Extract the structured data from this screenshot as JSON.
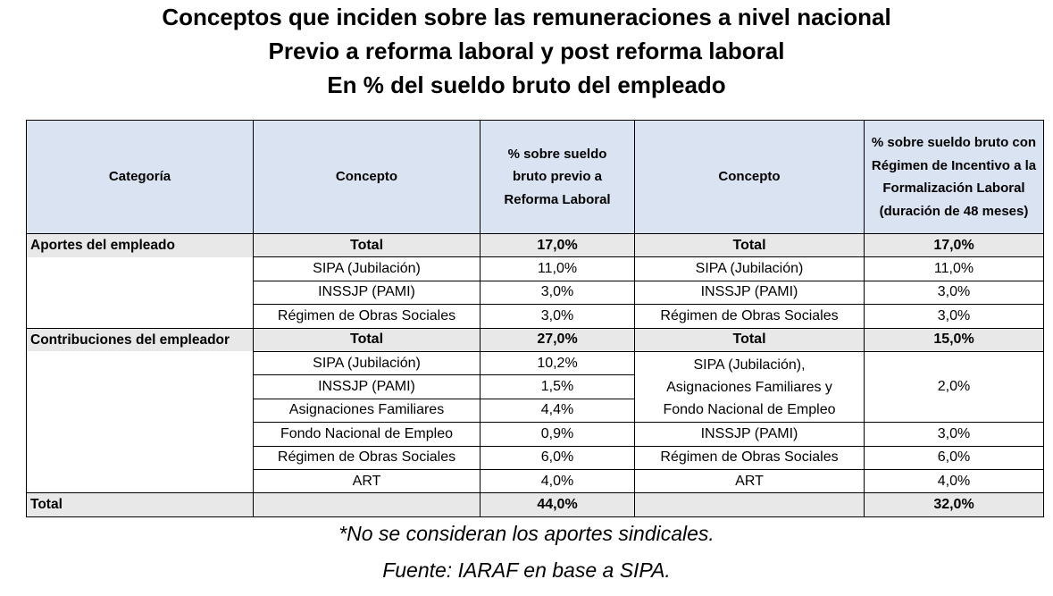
{
  "title": {
    "line1": "Conceptos que inciden sobre las remuneraciones a nivel nacional",
    "line2": "Previo a reforma laboral y post reforma laboral",
    "line3": "En % del sueldo bruto del empleado"
  },
  "table": {
    "headers": {
      "categoria": "Categoría",
      "concepto_prev": "Concepto",
      "pct_prev": "% sobre sueldo bruto previo a Reforma Laboral",
      "concepto_post": "Concepto",
      "pct_post": "% sobre sueldo bruto con Régimen de Incentivo a la Formalización Laboral (duración de 48 meses)"
    },
    "aportes": {
      "category": "Aportes del empleado",
      "total_label_prev": "Total",
      "total_prev": "17,0%",
      "total_label_post": "Total",
      "total_post": "17,0%",
      "rows": [
        {
          "concepto_prev": "SIPA (Jubilación)",
          "pct_prev": "11,0%",
          "concepto_post": "SIPA (Jubilación)",
          "pct_post": "11,0%"
        },
        {
          "concepto_prev": "INSSJP (PAMI)",
          "pct_prev": "3,0%",
          "concepto_post": "INSSJP (PAMI)",
          "pct_post": "3,0%"
        },
        {
          "concepto_prev": "Régimen de Obras Sociales",
          "pct_prev": "3,0%",
          "concepto_post": "Régimen de Obras Sociales",
          "pct_post": "3,0%"
        }
      ]
    },
    "contribuciones": {
      "category": "Contribuciones del empleador",
      "total_label_prev": "Total",
      "total_prev": "27,0%",
      "total_label_post": "Total",
      "total_post": "15,0%",
      "prev_rows": [
        {
          "concepto": "SIPA (Jubilación)",
          "pct": "10,2%"
        },
        {
          "concepto": "INSSJP (PAMI)",
          "pct": "1,5%"
        },
        {
          "concepto": "Asignaciones Familiares",
          "pct": "4,4%"
        },
        {
          "concepto": "Fondo Nacional de Empleo",
          "pct": "0,9%"
        },
        {
          "concepto": "Régimen de Obras Sociales",
          "pct": "6,0%"
        },
        {
          "concepto": "ART",
          "pct": "4,0%"
        }
      ],
      "post_merged": {
        "line1": "SIPA (Jubilación),",
        "line2": "Asignaciones Familiares y",
        "line3": "Fondo Nacional de Empleo",
        "pct": "2,0%"
      },
      "post_rows": [
        {
          "concepto": "INSSJP (PAMI)",
          "pct": "3,0%"
        },
        {
          "concepto": "Régimen de Obras Sociales",
          "pct": "6,0%"
        },
        {
          "concepto": "ART",
          "pct": "4,0%"
        }
      ]
    },
    "total": {
      "label": "Total",
      "prev": "44,0%",
      "post": "32,0%"
    }
  },
  "notes": {
    "line1": "*No se consideran los aportes sindicales.",
    "line2": "Fuente: IARAF en base a SIPA."
  }
}
